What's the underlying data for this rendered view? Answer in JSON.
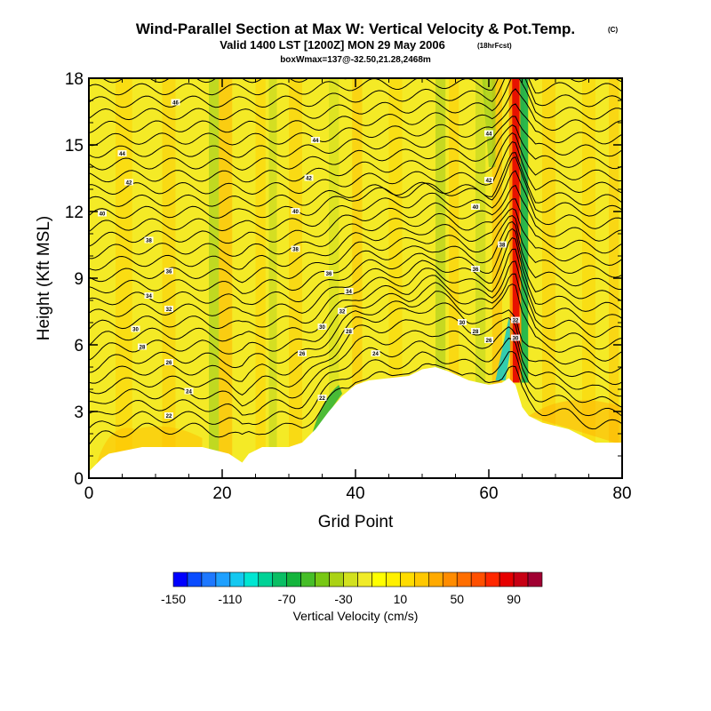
{
  "chart_data": {
    "type": "heatmap",
    "title": "Wind-Parallel Section at Max W: Vertical Velocity & Pot.Temp.",
    "title_mark": "(C)",
    "subtitle": "Valid 1400 LST [1200Z] MON 29 May 2006",
    "subtitle_note": "(18hrFcst)",
    "subtitle2": "boxWmax=137@-32.50,21.28,2468m",
    "xlabel": "Grid Point",
    "ylabel": "Height (Kft MSL)",
    "xlim": [
      0,
      80
    ],
    "ylim": [
      0,
      18
    ],
    "x_ticks": [
      "0",
      "20",
      "40",
      "60",
      "80"
    ],
    "y_ticks": [
      "0",
      "3",
      "6",
      "9",
      "12",
      "15",
      "18"
    ],
    "colorbar": {
      "label": "Vertical Velocity (cm/s)",
      "tick_labels": [
        "-150",
        "-110",
        "-70",
        "-30",
        "10",
        "50",
        "90"
      ],
      "colors": [
        "#0000ff",
        "#0a4cff",
        "#1e78ff",
        "#1ea0ff",
        "#14c8f0",
        "#00e6d2",
        "#00d296",
        "#0abe64",
        "#14b43c",
        "#46be28",
        "#78c814",
        "#aad214",
        "#d2e11e",
        "#f0eb28",
        "#ffff00",
        "#fff000",
        "#ffdc00",
        "#ffc800",
        "#ffaa00",
        "#ff8c00",
        "#ff6e00",
        "#ff5000",
        "#ff2800",
        "#e60000",
        "#c80014",
        "#a00032"
      ]
    },
    "terrain": [
      [
        0,
        0.3
      ],
      [
        1,
        0.6
      ],
      [
        2,
        0.9
      ],
      [
        3,
        1.1
      ],
      [
        8,
        1.4
      ],
      [
        17,
        1.4
      ],
      [
        21,
        1.1
      ],
      [
        23,
        0.7
      ],
      [
        24,
        1.1
      ],
      [
        26,
        1.4
      ],
      [
        30,
        1.4
      ],
      [
        32,
        1.6
      ],
      [
        34,
        2.2
      ],
      [
        36,
        3.0
      ],
      [
        38,
        3.7
      ],
      [
        40,
        4.2
      ],
      [
        42,
        4.4
      ],
      [
        45,
        4.5
      ],
      [
        48,
        4.6
      ],
      [
        50,
        4.9
      ],
      [
        52,
        5.0
      ],
      [
        54,
        4.8
      ],
      [
        57,
        4.4
      ],
      [
        60,
        4.2
      ],
      [
        62,
        4.3
      ],
      [
        63,
        4.5
      ],
      [
        64,
        4.2
      ],
      [
        65,
        3.2
      ],
      [
        66,
        2.8
      ],
      [
        68,
        2.5
      ],
      [
        72,
        2.2
      ],
      [
        74,
        1.9
      ],
      [
        76,
        1.6
      ],
      [
        80,
        1.6
      ]
    ],
    "updraft_core": {
      "label": "boxWmax",
      "peak_value": 137,
      "x_top": 64.5,
      "x_bottom": 63.5
    },
    "contour_labels": [
      {
        "text": "46",
        "x": 13,
        "y": 16.9
      },
      {
        "text": "44",
        "x": 5,
        "y": 14.6
      },
      {
        "text": "44",
        "x": 34,
        "y": 15.2
      },
      {
        "text": "44",
        "x": 60,
        "y": 15.5
      },
      {
        "text": "42",
        "x": 6,
        "y": 13.3
      },
      {
        "text": "42",
        "x": 33,
        "y": 13.5
      },
      {
        "text": "42",
        "x": 60,
        "y": 13.4
      },
      {
        "text": "40",
        "x": 2,
        "y": 11.9
      },
      {
        "text": "40",
        "x": 31,
        "y": 12.0
      },
      {
        "text": "40",
        "x": 58,
        "y": 12.2
      },
      {
        "text": "38",
        "x": 9,
        "y": 10.7
      },
      {
        "text": "38",
        "x": 31,
        "y": 10.3
      },
      {
        "text": "38",
        "x": 62,
        "y": 10.5
      },
      {
        "text": "36",
        "x": 12,
        "y": 9.3
      },
      {
        "text": "36",
        "x": 36,
        "y": 9.2
      },
      {
        "text": "36",
        "x": 58,
        "y": 9.4
      },
      {
        "text": "34",
        "x": 9,
        "y": 8.2
      },
      {
        "text": "34",
        "x": 39,
        "y": 8.4
      },
      {
        "text": "32",
        "x": 12,
        "y": 7.6
      },
      {
        "text": "32",
        "x": 38,
        "y": 7.5
      },
      {
        "text": "32",
        "x": 64,
        "y": 7.1
      },
      {
        "text": "30",
        "x": 7,
        "y": 6.7
      },
      {
        "text": "30",
        "x": 35,
        "y": 6.8
      },
      {
        "text": "30",
        "x": 56,
        "y": 7.0
      },
      {
        "text": "28",
        "x": 8,
        "y": 5.9
      },
      {
        "text": "28",
        "x": 39,
        "y": 6.6
      },
      {
        "text": "28",
        "x": 58,
        "y": 6.6
      },
      {
        "text": "26",
        "x": 12,
        "y": 5.2
      },
      {
        "text": "26",
        "x": 32,
        "y": 5.6
      },
      {
        "text": "26",
        "x": 60,
        "y": 6.2
      },
      {
        "text": "24",
        "x": 15,
        "y": 3.9
      },
      {
        "text": "24",
        "x": 43,
        "y": 5.6
      },
      {
        "text": "30",
        "x": 64,
        "y": 6.3
      },
      {
        "text": "22",
        "x": 12,
        "y": 2.8
      },
      {
        "text": "22",
        "x": 35,
        "y": 3.6
      }
    ]
  }
}
